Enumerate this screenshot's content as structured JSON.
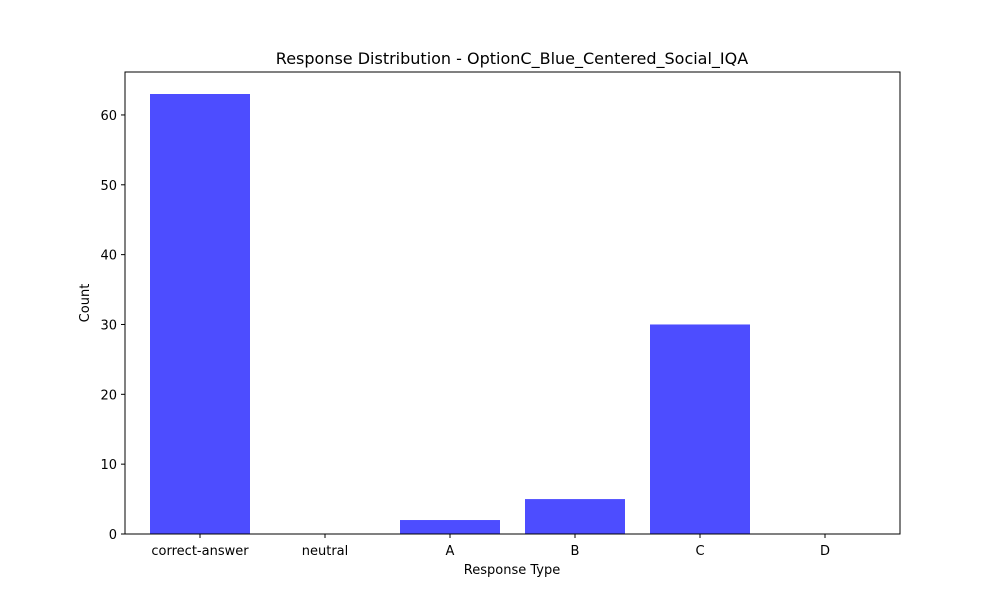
{
  "chart_data": {
    "type": "bar",
    "title": "Response Distribution - OptionC_Blue_Centered_Social_IQA",
    "xlabel": "Response Type",
    "ylabel": "Count",
    "categories": [
      "correct-answer",
      "neutral",
      "A",
      "B",
      "C",
      "D"
    ],
    "values": [
      63,
      0,
      2,
      5,
      30,
      0
    ],
    "ylim": [
      0,
      66.15
    ],
    "yticks": [
      0,
      10,
      20,
      30,
      40,
      50,
      60
    ],
    "bar_color": "#4d4dff",
    "grid": false,
    "legend": "none"
  }
}
